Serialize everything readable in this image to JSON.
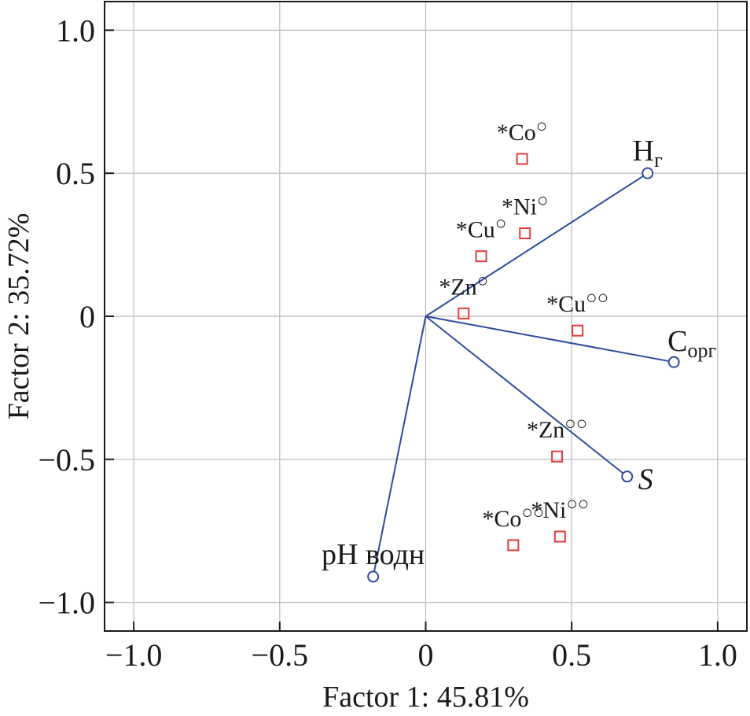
{
  "chart_data": {
    "type": "scatter",
    "title": "",
    "xlabel": "Factor 1: 45.81%",
    "ylabel": "Factor 2: 35.72%",
    "xlim": [
      -1.1,
      1.1
    ],
    "ylim": [
      -1.1,
      1.1
    ],
    "x_ticks": [
      -1.0,
      -0.5,
      0,
      0.5,
      1.0
    ],
    "x_tick_labels": [
      "−1.0",
      "−0.5",
      "0",
      "0.5",
      "1.0"
    ],
    "y_ticks": [
      1.0,
      0.5,
      0,
      -0.5,
      -1.0
    ],
    "y_tick_labels": [
      "1.0",
      "0.5",
      "0",
      "−0.5",
      "−1.0"
    ],
    "grid": true,
    "colors": {
      "vectors": "#2f4a9e",
      "points": "#e23b3b",
      "grid": "#b9b9b9",
      "axis": "#1a1a1a"
    },
    "variables": [
      {
        "name": "H",
        "sub": "г",
        "sup": "",
        "label_pos": "above",
        "x": 0.76,
        "y": 0.5
      },
      {
        "name": "C",
        "sub": "орг",
        "sup": "",
        "label_pos": "above-right",
        "x": 0.85,
        "y": -0.16
      },
      {
        "name": "S",
        "sub": "",
        "sup": "",
        "label_pos": "right",
        "x": 0.69,
        "y": -0.56
      },
      {
        "name": "pH",
        "sub": "",
        "sup": "",
        "suffix": " водн",
        "label_pos": "above",
        "x": -0.18,
        "y": -0.91
      }
    ],
    "points": [
      {
        "name": "*Co",
        "sup": "○",
        "x": 0.33,
        "y": 0.55
      },
      {
        "name": "*Ni",
        "sup": "○",
        "x": 0.34,
        "y": 0.29
      },
      {
        "name": "*Cu",
        "sup": "○",
        "x": 0.19,
        "y": 0.21
      },
      {
        "name": "*Zn",
        "sup": "○",
        "x": 0.13,
        "y": 0.01
      },
      {
        "name": "*Cu",
        "sup": "○○",
        "x": 0.52,
        "y": -0.05
      },
      {
        "name": "*Zn",
        "sup": "○○",
        "x": 0.45,
        "y": -0.49
      },
      {
        "name": "*Ni",
        "sup": "○○",
        "x": 0.46,
        "y": -0.77
      },
      {
        "name": "*Co",
        "sup": "○○",
        "x": 0.3,
        "y": -0.8
      }
    ]
  }
}
